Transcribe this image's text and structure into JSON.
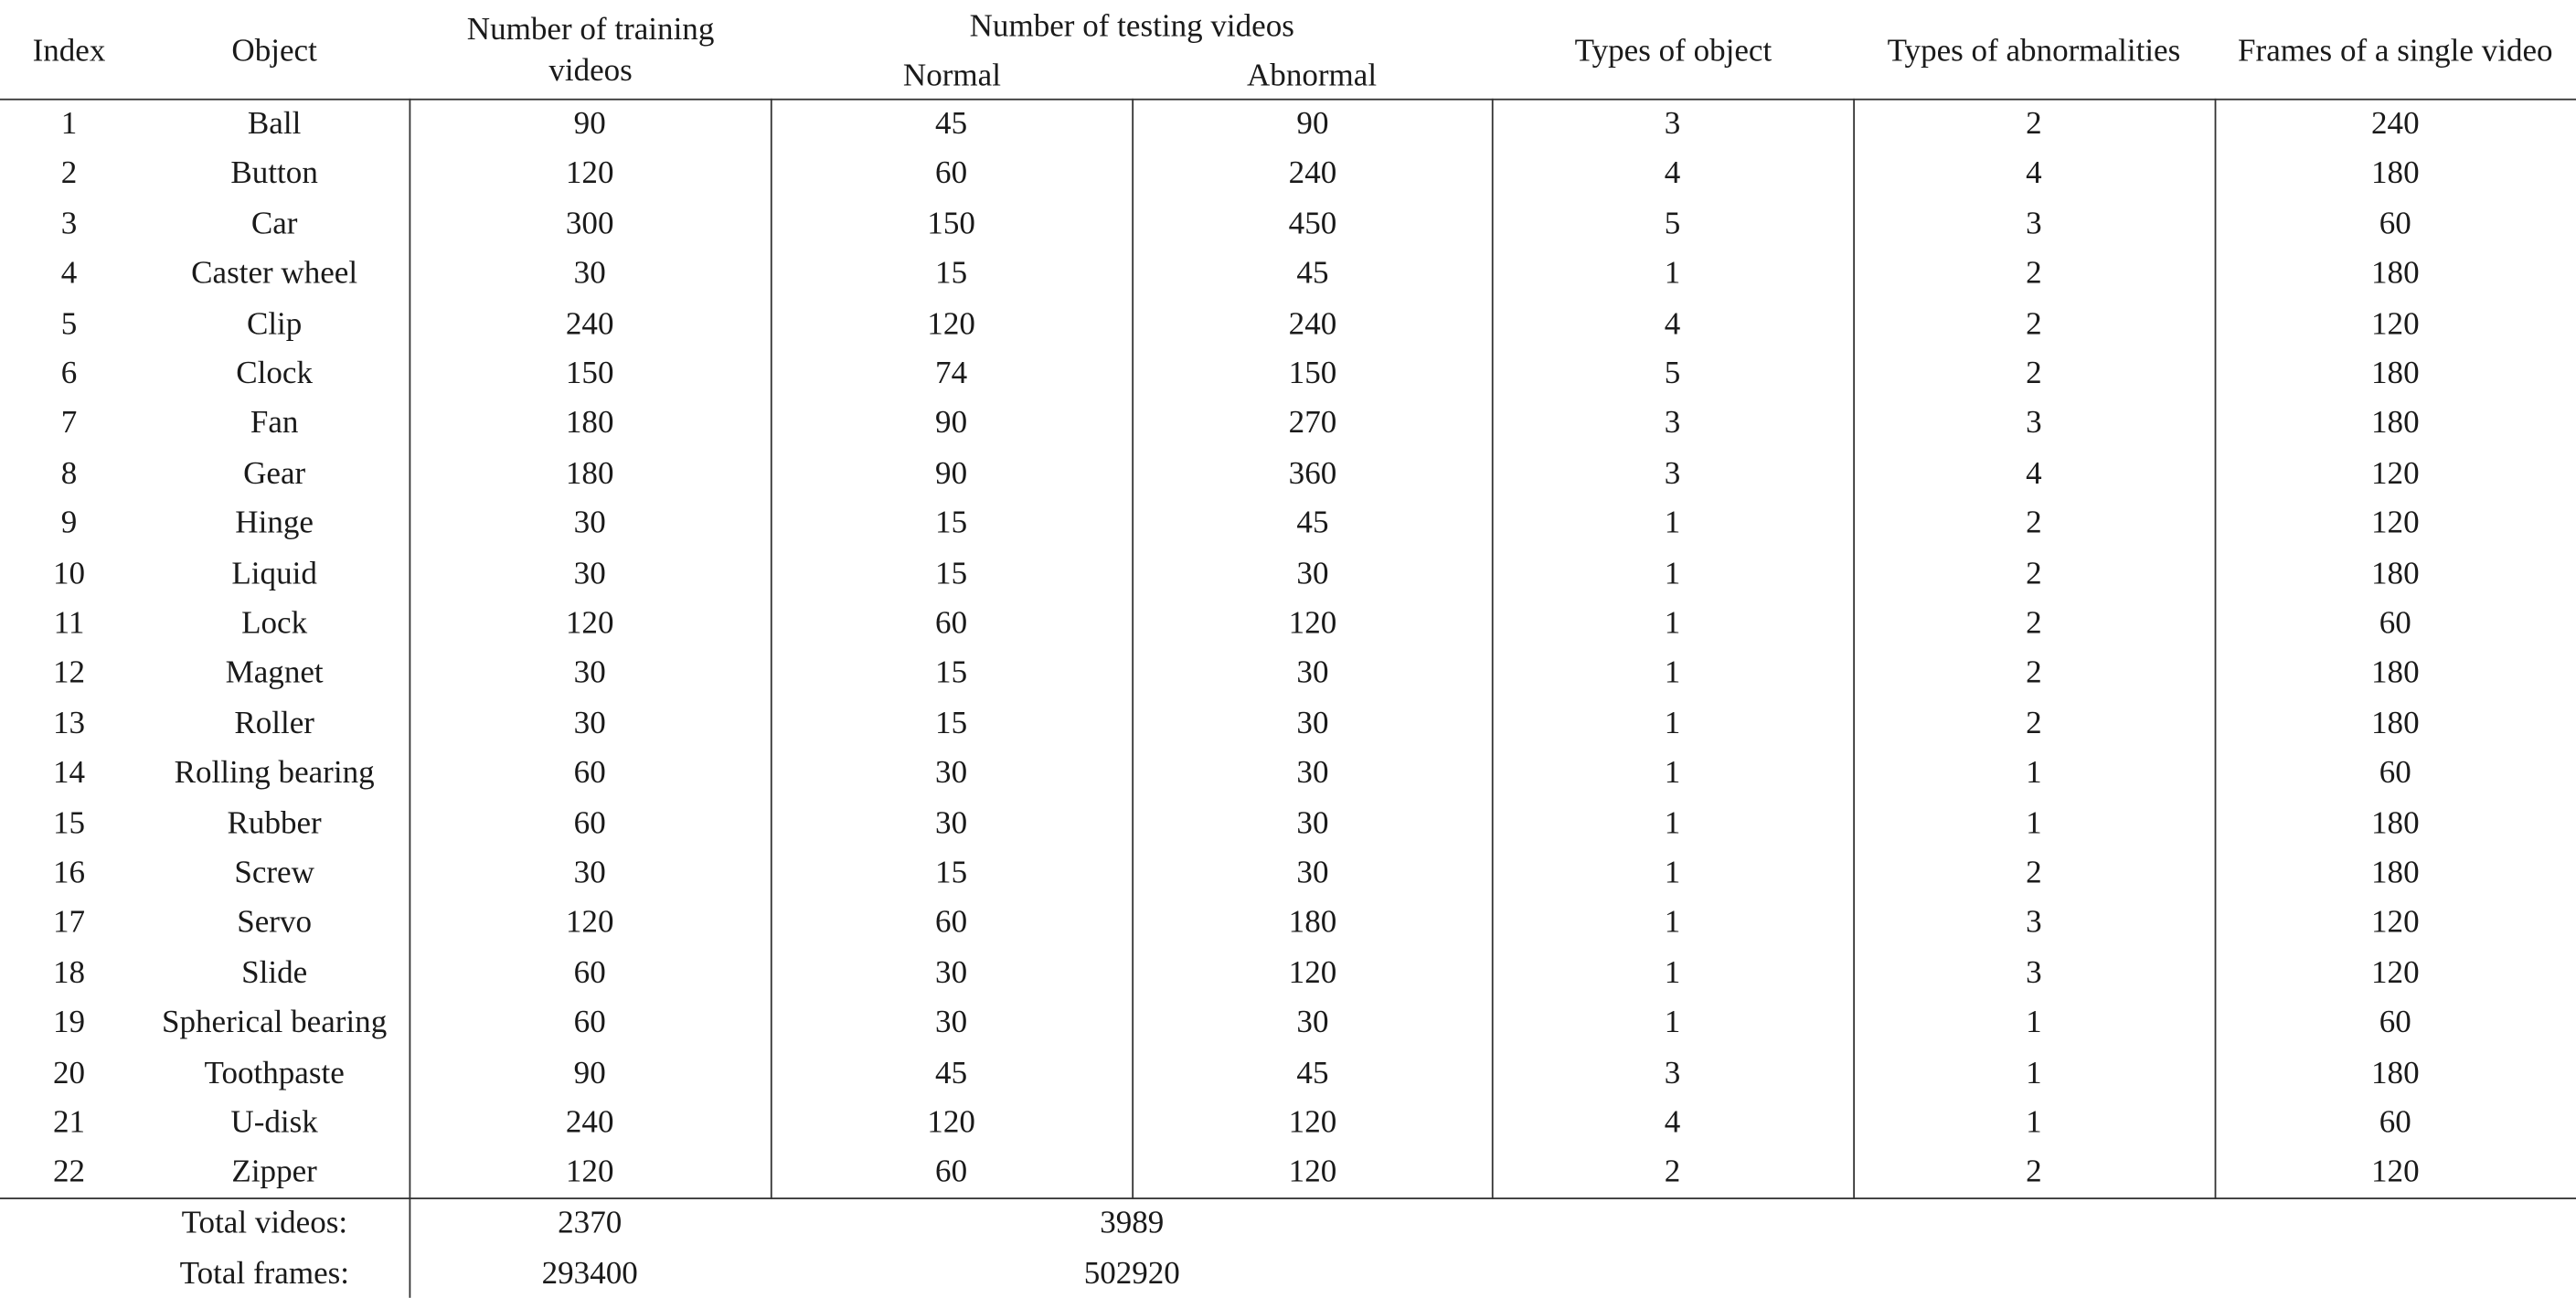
{
  "header": {
    "index": "Index",
    "object": "Object",
    "training": "Number of training videos",
    "training_line1": "Number of training",
    "training_line2": "videos",
    "testing": "Number of testing videos",
    "normal": "Normal",
    "abnormal": "Abnormal",
    "types_object": "Types of object",
    "types_abnormalities": "Types of abnormalities",
    "frames": "Frames of a single video"
  },
  "rows": [
    [
      "1",
      "Ball",
      "90",
      "45",
      "90",
      "3",
      "2",
      "240"
    ],
    [
      "2",
      "Button",
      "120",
      "60",
      "240",
      "4",
      "4",
      "180"
    ],
    [
      "3",
      "Car",
      "300",
      "150",
      "450",
      "5",
      "3",
      "60"
    ],
    [
      "4",
      "Caster wheel",
      "30",
      "15",
      "45",
      "1",
      "2",
      "180"
    ],
    [
      "5",
      "Clip",
      "240",
      "120",
      "240",
      "4",
      "2",
      "120"
    ],
    [
      "6",
      "Clock",
      "150",
      "74",
      "150",
      "5",
      "2",
      "180"
    ],
    [
      "7",
      "Fan",
      "180",
      "90",
      "270",
      "3",
      "3",
      "180"
    ],
    [
      "8",
      "Gear",
      "180",
      "90",
      "360",
      "3",
      "4",
      "120"
    ],
    [
      "9",
      "Hinge",
      "30",
      "15",
      "45",
      "1",
      "2",
      "120"
    ],
    [
      "10",
      "Liquid",
      "30",
      "15",
      "30",
      "1",
      "2",
      "180"
    ],
    [
      "11",
      "Lock",
      "120",
      "60",
      "120",
      "1",
      "2",
      "60"
    ],
    [
      "12",
      "Magnet",
      "30",
      "15",
      "30",
      "1",
      "2",
      "180"
    ],
    [
      "13",
      "Roller",
      "30",
      "15",
      "30",
      "1",
      "2",
      "180"
    ],
    [
      "14",
      "Rolling bearing",
      "60",
      "30",
      "30",
      "1",
      "1",
      "60"
    ],
    [
      "15",
      "Rubber",
      "60",
      "30",
      "30",
      "1",
      "1",
      "180"
    ],
    [
      "16",
      "Screw",
      "30",
      "15",
      "30",
      "1",
      "2",
      "180"
    ],
    [
      "17",
      "Servo",
      "120",
      "60",
      "180",
      "1",
      "3",
      "120"
    ],
    [
      "18",
      "Slide",
      "60",
      "30",
      "120",
      "1",
      "3",
      "120"
    ],
    [
      "19",
      "Spherical bearing",
      "60",
      "30",
      "30",
      "1",
      "1",
      "60"
    ],
    [
      "20",
      "Toothpaste",
      "90",
      "45",
      "45",
      "3",
      "1",
      "180"
    ],
    [
      "21",
      "U-disk",
      "240",
      "120",
      "120",
      "4",
      "1",
      "60"
    ],
    [
      "22",
      "Zipper",
      "120",
      "60",
      "120",
      "2",
      "2",
      "120"
    ]
  ],
  "totals": [
    {
      "label": "Total videos:",
      "training": "2370",
      "testing": "3989"
    },
    {
      "label": "Total frames:",
      "training": "293400",
      "testing": "502920"
    }
  ]
}
